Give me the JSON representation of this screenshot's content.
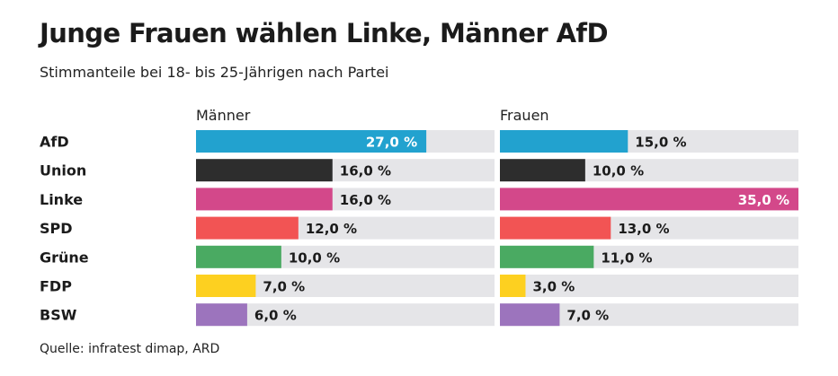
{
  "title": "Junge Frauen wählen Linke, Männer AfD",
  "subtitle": "Stimmanteile bei 18- bis 25-Jährigen nach Partei",
  "source": "Quelle: infratest dimap, ARD",
  "chart_data": {
    "type": "bar",
    "orientation": "horizontal",
    "categories": [
      "AfD",
      "Union",
      "Linke",
      "SPD",
      "Grüne",
      "FDP",
      "BSW"
    ],
    "colors": [
      "#22a2cf",
      "#2d2d2d",
      "#d3488a",
      "#f25454",
      "#4aaa62",
      "#fdd020",
      "#9c74bd"
    ],
    "track_color": "#e5e5e8",
    "xlim": [
      0,
      35
    ],
    "series": [
      {
        "name": "Männer",
        "values": [
          27.0,
          16.0,
          16.0,
          12.0,
          10.0,
          7.0,
          6.0
        ],
        "labels": [
          "27,0 %",
          "16,0 %",
          "16,0 %",
          "12,0 %",
          "10,0 %",
          "7,0 %",
          "6,0 %"
        ]
      },
      {
        "name": "Frauen",
        "values": [
          15.0,
          10.0,
          35.0,
          13.0,
          11.0,
          3.0,
          7.0
        ],
        "labels": [
          "15,0 %",
          "10,0 %",
          "35,0 %",
          "13,0 %",
          "11,0 %",
          "3,0 %",
          "7,0 %"
        ]
      }
    ]
  }
}
